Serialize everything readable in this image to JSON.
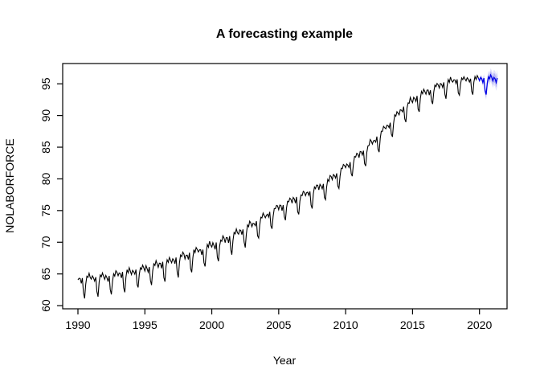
{
  "chart_data": {
    "type": "line",
    "title": "A forecasting example",
    "xlabel": "Year",
    "ylabel": "NOLABORFORCE",
    "x_ticks": [
      1990,
      1995,
      2000,
      2005,
      2010,
      2015,
      2020
    ],
    "y_ticks": [
      60,
      65,
      70,
      75,
      80,
      85,
      90,
      95
    ],
    "xlim": [
      1988.86,
      2022.06
    ],
    "ylim": [
      59.5,
      98.2
    ],
    "grid": false,
    "legend": null,
    "frame_color": "#000000",
    "series": [
      {
        "name": "NOLABORFORCE observed",
        "role": "observed",
        "color": "#000000",
        "start": 1990.0,
        "end": 2019.9167,
        "points_per_year": 12,
        "trend_knots": [
          [
            1990.5,
            63.9
          ],
          [
            1991.5,
            64.1
          ],
          [
            1992.5,
            64.3
          ],
          [
            1993.5,
            64.8
          ],
          [
            1994.5,
            65.3
          ],
          [
            1995.5,
            65.9
          ],
          [
            1996.5,
            66.5
          ],
          [
            1997.5,
            67.1
          ],
          [
            1998.5,
            67.9
          ],
          [
            1999.5,
            68.7
          ],
          [
            2000.5,
            69.6
          ],
          [
            2001.5,
            70.6
          ],
          [
            2002.5,
            71.8
          ],
          [
            2003.5,
            73.1
          ],
          [
            2004.5,
            74.5
          ],
          [
            2005.5,
            75.8
          ],
          [
            2006.5,
            76.8
          ],
          [
            2007.5,
            77.8
          ],
          [
            2008.5,
            79.0
          ],
          [
            2009.5,
            80.8
          ],
          [
            2010.5,
            82.6
          ],
          [
            2011.5,
            84.4
          ],
          [
            2012.5,
            86.6
          ],
          [
            2013.5,
            89.0
          ],
          [
            2014.5,
            91.3
          ],
          [
            2015.5,
            92.9
          ],
          [
            2016.5,
            93.9
          ],
          [
            2017.5,
            94.9
          ],
          [
            2018.5,
            95.3
          ],
          [
            2019.5,
            95.5
          ],
          [
            2020.0,
            95.5
          ]
        ],
        "seasonal_monthly": [
          0.0,
          0.5,
          0.3,
          -0.3,
          0.4,
          -1.7,
          -2.3,
          -0.4,
          0.6,
          0.3,
          0.9,
          0.5
        ],
        "seasonal_scale": {
          "start": 1.15,
          "end": 0.95
        },
        "noise_amplitude": 0.18
      },
      {
        "name": "forecast",
        "role": "forecast",
        "color": "#0000e6",
        "band_color": "#2222dd",
        "band_opacity_95": 0.13,
        "band_opacity_80": 0.22,
        "t": [
          2020.0,
          2020.0833,
          2020.1667,
          2020.25,
          2020.3333,
          2020.4167,
          2020.5,
          2020.5833,
          2020.6667,
          2020.75,
          2020.8333,
          2020.9167,
          2021.0,
          2021.0833,
          2021.1667,
          2021.25,
          2021.3333
        ],
        "mean": [
          95.5,
          96.0,
          95.8,
          95.2,
          95.9,
          93.9,
          93.3,
          95.1,
          96.1,
          95.8,
          96.4,
          96.0,
          95.5,
          96.0,
          95.8,
          95.2,
          95.9
        ],
        "lo95": [
          95.25,
          95.6,
          95.3,
          94.6,
          95.2,
          93.1,
          92.45,
          94.2,
          95.15,
          94.8,
          95.35,
          94.9,
          94.35,
          94.8,
          94.55,
          93.9,
          94.55
        ],
        "hi95": [
          95.75,
          96.4,
          96.3,
          95.8,
          96.6,
          94.7,
          94.15,
          96.0,
          97.05,
          96.8,
          97.45,
          97.1,
          96.65,
          97.2,
          97.05,
          96.5,
          97.25
        ],
        "lo80": [
          95.35,
          95.76,
          95.5,
          94.84,
          95.48,
          93.42,
          92.79,
          94.56,
          95.53,
          95.2,
          95.77,
          95.34,
          94.81,
          95.28,
          95.05,
          94.42,
          95.09
        ],
        "hi80": [
          95.65,
          96.24,
          96.1,
          95.56,
          96.32,
          94.38,
          93.81,
          95.64,
          96.67,
          96.4,
          97.03,
          96.66,
          96.19,
          96.72,
          96.55,
          95.98,
          96.71
        ]
      }
    ]
  }
}
